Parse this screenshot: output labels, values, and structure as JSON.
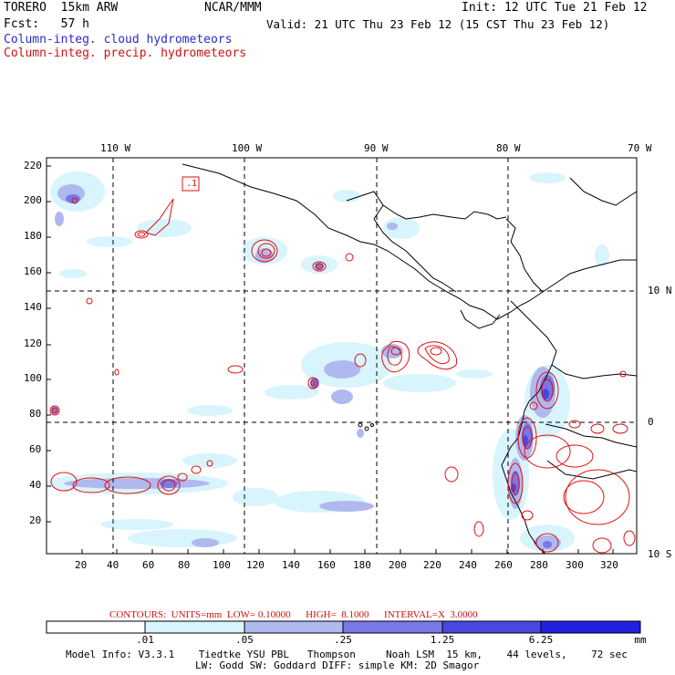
{
  "header": {
    "model": "TORERO  15km ARW",
    "org": "NCAR/MMM",
    "init": "Init: 12 UTC Tue 21 Feb 12",
    "fcst": "Fcst:   57 h",
    "valid": "Valid: 21 UTC Thu 23 Feb 12 (15 CST Thu 23 Feb 12)",
    "field_cloud": "Column-integ. cloud hydrometeors",
    "field_precip": "Column-integ. precip. hydrometeors"
  },
  "map": {
    "top_lon_labels": [
      "110 W",
      "100 W",
      "90 W",
      "80 W",
      "70 W"
    ],
    "right_lat_labels": [
      "10 N",
      "0",
      "10 S"
    ],
    "left_y_ticks": [
      "220",
      "200",
      "180",
      "160",
      "140",
      "120",
      "100",
      "80",
      "60",
      "40",
      "20"
    ],
    "bottom_x_ticks": [
      "20",
      "40",
      "60",
      "80",
      "100",
      "120",
      "140",
      "160",
      "180",
      "200",
      "220",
      "240",
      "260",
      "280",
      "300",
      "320"
    ],
    "contour_box_label": ".1"
  },
  "contours_info": {
    "text": "CONTOURS:  UNITS=mm  LOW= 0.10000      HIGH=  8.1000      INTERVAL=X  3.0000"
  },
  "colorbar": {
    "labels": [
      ".01",
      ".05",
      ".25",
      "1.25",
      "6.25"
    ],
    "unit": "mm",
    "colors": [
      "#ffffff",
      "#d8f4fc",
      "#b0b8f0",
      "#7878e8",
      "#4848e0",
      "#2020e0"
    ]
  },
  "footer": {
    "line1": "Model Info: V3.3.1    Tiedtke YSU PBL   Thompson     Noah LSM  15 km,    44 levels,    72 sec",
    "line2": "LW: Godd SW: Goddard DIFF: simple KM: 2D Smagor"
  }
}
